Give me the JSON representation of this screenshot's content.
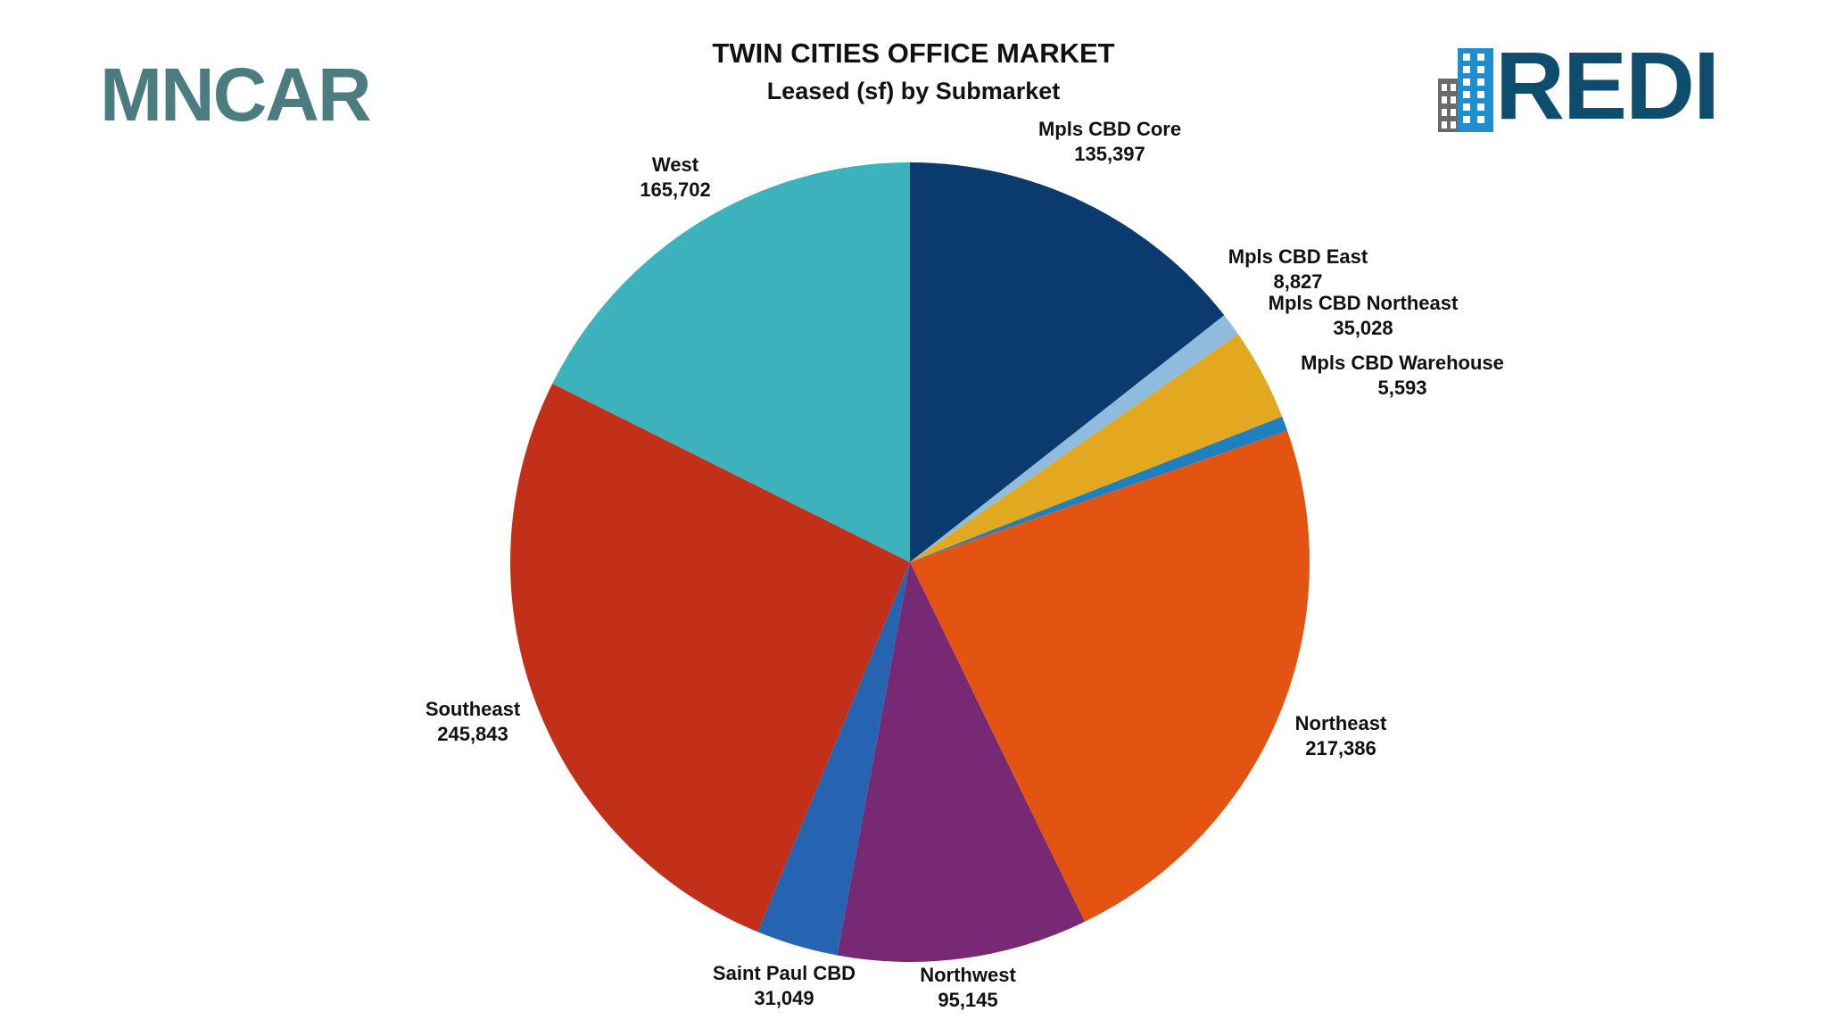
{
  "logos": {
    "left_text": "MNCAR",
    "right_text": "REDI",
    "left_color": "#4a7c80",
    "right_color": "#0e4d6e",
    "right_icon": "building-icon"
  },
  "chart_data": {
    "type": "pie",
    "title": "TWIN CITIES OFFICE MARKET",
    "subtitle": "Leased (sf) by Submarket",
    "legend": "none",
    "start_angle_deg": 0,
    "direction": "clockwise",
    "slices": [
      {
        "name": "Mpls CBD Core",
        "value": 135397,
        "value_label": "135,397",
        "color": "#0b3b6e"
      },
      {
        "name": "Mpls CBD East",
        "value": 8827,
        "value_label": "8,827",
        "color": "#8fbcdc"
      },
      {
        "name": "Mpls CBD Northeast",
        "value": 35028,
        "value_label": "35,028",
        "color": "#e2a81f"
      },
      {
        "name": "Mpls CBD Warehouse",
        "value": 5593,
        "value_label": "5,593",
        "color": "#1f80c0"
      },
      {
        "name": "Northeast",
        "value": 217386,
        "value_label": "217,386",
        "color": "#e35413"
      },
      {
        "name": "Northwest",
        "value": 95145,
        "value_label": "95,145",
        "color": "#772a73"
      },
      {
        "name": "Saint Paul CBD",
        "value": 31049,
        "value_label": "31,049",
        "color": "#2663b0"
      },
      {
        "name": "Southeast",
        "value": 245843,
        "value_label": "245,843",
        "color": "#c23019"
      },
      {
        "name": "West",
        "value": 165702,
        "value_label": "165,702",
        "color": "#3cb3bc"
      }
    ]
  }
}
